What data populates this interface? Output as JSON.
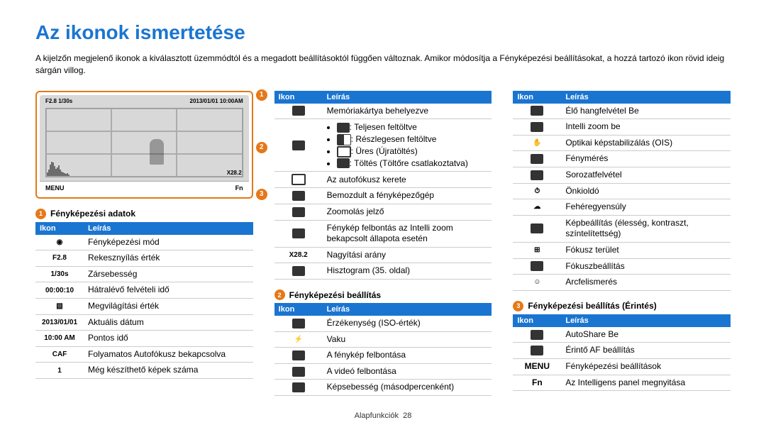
{
  "page": {
    "title": "Az ikonok ismertetése",
    "subtitle": "A kijelzőn megjelenő ikonok a kiválasztott üzemmódtól és a megadott beállításoktól függően változnak. Amikor módosítja a Fényképezési beállításokat, a hozzá tartozó ikon rövid ideig sárgán villog.",
    "footer_section": "Alapfunkciók",
    "footer_page": "28"
  },
  "preview": {
    "top_left": "F2.8 1/30s",
    "top_right": "2013/01/01  10:00AM",
    "bottom_left": "MENU",
    "bottom_right": "Fn",
    "zoom_text": "X28.2"
  },
  "tables": {
    "col_icon": "Ikon",
    "col_desc": "Leírás"
  },
  "section1": {
    "heading": "Fényképezési adatok",
    "rows": [
      {
        "icon": "◉",
        "desc": "Fényképezési mód"
      },
      {
        "icon": "F2.8",
        "desc": "Rekesznyílás érték"
      },
      {
        "icon": "1/30s",
        "desc": "Zársebesség"
      },
      {
        "icon": "00:00:10",
        "desc": "Hátralévő felvételi idő"
      },
      {
        "icon": "▧",
        "desc": "Megvilágítási érték"
      },
      {
        "icon": "2013/01/01",
        "desc": "Aktuális dátum"
      },
      {
        "icon": "10:00 AM",
        "desc": "Pontos idő"
      },
      {
        "icon": "CAF",
        "desc": "Folyamatos Autofókusz bekapcsolva"
      },
      {
        "icon": "1",
        "desc": "Még készíthető képek száma"
      }
    ]
  },
  "col2_top": {
    "rows": [
      {
        "icon": "card",
        "desc": "Memóriakártya behelyezve"
      },
      {
        "icon": "batt",
        "battery_items": [
          "Teljesen feltöltve",
          "Részlegesen feltöltve",
          "Üres (Újratöltés)",
          "Töltés (Töltőre csatlakoztatva)"
        ]
      },
      {
        "icon": "◻",
        "desc": "Az autofókusz kerete"
      },
      {
        "icon": "blur",
        "desc": "Bemozdult a fényképezőgép"
      },
      {
        "icon": "zoom",
        "desc": "Zoomolás jelző"
      },
      {
        "icon": "10M",
        "desc": "Fénykép felbontás az Intelli zoom bekapcsolt állapota esetén"
      },
      {
        "icon": "X28.2",
        "desc": "Nagyítási arány"
      },
      {
        "icon": "histo",
        "desc": "Hisztogram (35. oldal)"
      }
    ]
  },
  "section2": {
    "heading": "Fényképezési beállítás",
    "rows": [
      {
        "icon": "ISO",
        "desc": "Érzékenység (ISO-érték)"
      },
      {
        "icon": "⚡",
        "desc": "Vaku"
      },
      {
        "icon": "16M",
        "desc": "A fénykép felbontása"
      },
      {
        "icon": "FULL HD",
        "desc": "A videó felbontása"
      },
      {
        "icon": "30F",
        "desc": "Képsebesség (másodpercenként)"
      }
    ]
  },
  "col3_top": {
    "rows": [
      {
        "icon": "ALIVE",
        "desc": "Élő hangfelvétel Be"
      },
      {
        "icon": "izoom",
        "desc": "Intelli zoom be"
      },
      {
        "icon": "✋",
        "desc": "Optikai képstabilizálás (OIS)"
      },
      {
        "icon": "meter",
        "desc": "Fénymérés"
      },
      {
        "icon": "burst",
        "desc": "Sorozatfelvétel"
      },
      {
        "icon": "⏱",
        "desc": "Önkioldó"
      },
      {
        "icon": "☁",
        "desc": "Fehéregyensúly"
      },
      {
        "icon": "adj",
        "desc": "Képbeállítás (élesség, kontraszt, színtelítettség)"
      },
      {
        "icon": "⊞",
        "desc": "Fókusz terület"
      },
      {
        "icon": "focus",
        "desc": "Fókuszbeállítás"
      },
      {
        "icon": "☺",
        "desc": "Arcfelismerés"
      }
    ]
  },
  "section3": {
    "heading": "Fényképezési beállítás (Érintés)",
    "rows": [
      {
        "icon": "share",
        "desc": "AutoShare Be"
      },
      {
        "icon": "touch",
        "desc": "Érintő AF beállítás"
      },
      {
        "icon": "MENU",
        "icon_text": true,
        "desc": "Fényképezési beállítások"
      },
      {
        "icon": "Fn",
        "icon_text": true,
        "desc": "Az Intelligens panel megnyitása"
      }
    ]
  }
}
